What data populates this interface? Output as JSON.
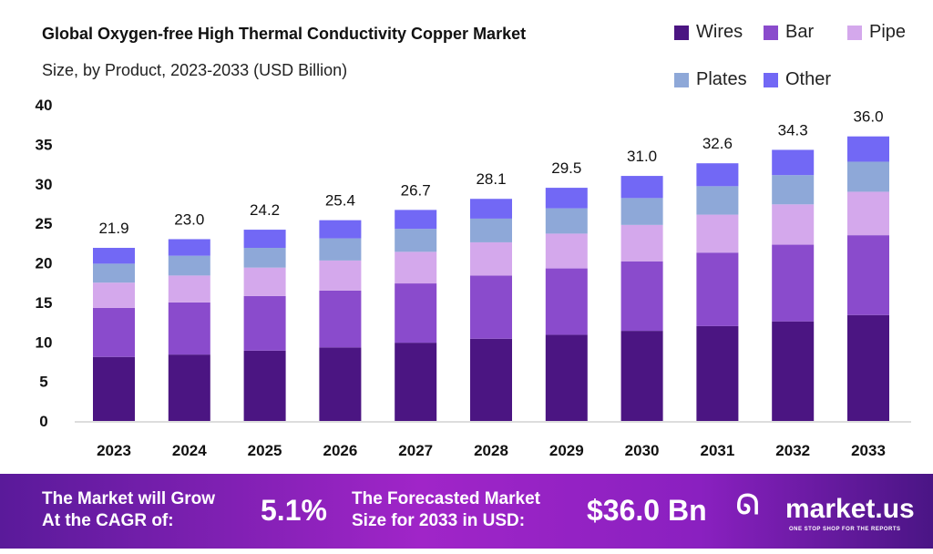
{
  "chart_data": {
    "type": "bar",
    "stacked": true,
    "title": "Global Oxygen-free High Thermal Conductivity Copper Market",
    "subtitle": "Size, by Product, 2023-2033 (USD Billion)",
    "categories": [
      "2023",
      "2024",
      "2025",
      "2026",
      "2027",
      "2028",
      "2029",
      "2030",
      "2031",
      "2032",
      "2033"
    ],
    "totals": [
      "21.9",
      "23.0",
      "24.2",
      "25.4",
      "26.7",
      "28.1",
      "29.5",
      "31.0",
      "32.6",
      "34.3",
      "36.0"
    ],
    "series": [
      {
        "name": "Wires",
        "color": "#4b1582",
        "values": [
          8.1,
          8.4,
          8.9,
          9.3,
          9.9,
          10.4,
          10.9,
          11.4,
          12.0,
          12.6,
          13.4
        ]
      },
      {
        "name": "Bar",
        "color": "#8a4bcc",
        "values": [
          6.2,
          6.6,
          6.9,
          7.2,
          7.5,
          8.0,
          8.4,
          8.8,
          9.3,
          9.7,
          10.1
        ]
      },
      {
        "name": "Pipe",
        "color": "#d4a8ec",
        "values": [
          3.2,
          3.4,
          3.6,
          3.8,
          4.0,
          4.2,
          4.4,
          4.6,
          4.8,
          5.1,
          5.5
        ]
      },
      {
        "name": "Plates",
        "color": "#8ea8d8",
        "values": [
          2.4,
          2.5,
          2.5,
          2.8,
          2.9,
          3.0,
          3.2,
          3.4,
          3.6,
          3.7,
          3.8
        ]
      },
      {
        "name": "Other",
        "color": "#7268f5",
        "values": [
          2.0,
          2.1,
          2.3,
          2.3,
          2.4,
          2.5,
          2.6,
          2.8,
          2.9,
          3.2,
          3.2
        ]
      }
    ],
    "yticks": [
      "0",
      "5",
      "10",
      "15",
      "20",
      "25",
      "30",
      "35",
      "40"
    ],
    "ylim": [
      0,
      40
    ],
    "legend": "top-right",
    "grid": false
  },
  "footer": {
    "cagr_label_1": "The Market will Grow",
    "cagr_label_2": "At the CAGR of:",
    "cagr": "5.1%",
    "forecast_label_1": "The Forecasted Market",
    "forecast_label_2": "Size for 2033 in USD:",
    "forecast": "$36.0 Bn",
    "brand": "market.us",
    "tagline": "ONE STOP SHOP FOR THE REPORTS"
  }
}
